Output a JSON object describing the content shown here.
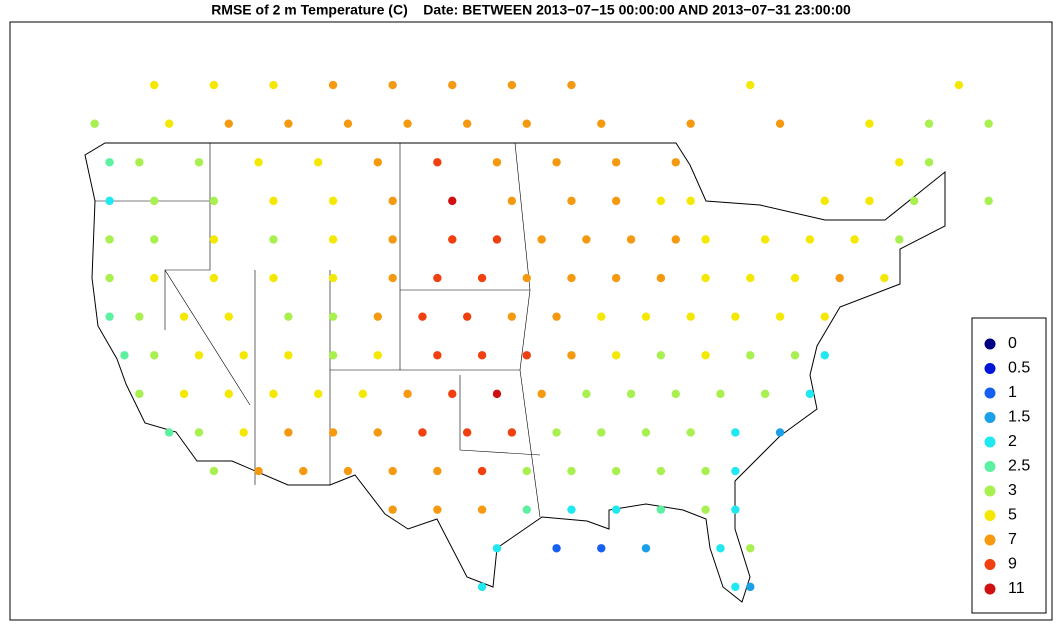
{
  "map": {
    "title": "RMSE of 2 m Temperature (C)    Date: BETWEEN 2013−07−15 00:00:00 AND 2013−07−31 23:00:00",
    "legend": {
      "levels": [
        0,
        0.5,
        1,
        1.5,
        2,
        2.5,
        3,
        5,
        7,
        9,
        11
      ],
      "colors": [
        "#000080",
        "#0015d6",
        "#1560f0",
        "#1ba0e8",
        "#20e8f0",
        "#5cf0a0",
        "#a8f050",
        "#f5e800",
        "#f59a10",
        "#f04010",
        "#d01010"
      ]
    },
    "stations": [
      [
        -120,
        52,
        5
      ],
      [
        -116,
        52,
        5
      ],
      [
        -112,
        52,
        5
      ],
      [
        -108,
        52,
        7
      ],
      [
        -104,
        52,
        7
      ],
      [
        -100,
        52,
        7
      ],
      [
        -96,
        52,
        7
      ],
      [
        -92,
        52,
        7
      ],
      [
        -80,
        52,
        5
      ],
      [
        -66,
        52,
        5
      ],
      [
        -124,
        50,
        3
      ],
      [
        -119,
        50,
        5
      ],
      [
        -115,
        50,
        7
      ],
      [
        -111,
        50,
        7
      ],
      [
        -107,
        50,
        7
      ],
      [
        -103,
        50,
        7
      ],
      [
        -99,
        50,
        7
      ],
      [
        -95,
        50,
        7
      ],
      [
        -90,
        50,
        7
      ],
      [
        -84,
        50,
        7
      ],
      [
        -78,
        50,
        7
      ],
      [
        -72,
        50,
        5
      ],
      [
        -68,
        50,
        3
      ],
      [
        -64,
        50,
        3
      ],
      [
        -123,
        48,
        2.5
      ],
      [
        -121,
        48,
        3
      ],
      [
        -117,
        48,
        3
      ],
      [
        -113,
        48,
        5
      ],
      [
        -109,
        48,
        5
      ],
      [
        -105,
        48,
        7
      ],
      [
        -101,
        48,
        9
      ],
      [
        -97,
        48,
        7
      ],
      [
        -93,
        48,
        7
      ],
      [
        -89,
        48,
        7
      ],
      [
        -85,
        48,
        7
      ],
      [
        -70,
        48,
        5
      ],
      [
        -68,
        48,
        3
      ],
      [
        -123,
        46,
        2
      ],
      [
        -120,
        46,
        3
      ],
      [
        -116,
        46,
        3
      ],
      [
        -112,
        46,
        5
      ],
      [
        -108,
        46,
        5
      ],
      [
        -104,
        46,
        7
      ],
      [
        -100,
        46,
        11
      ],
      [
        -96,
        46,
        7
      ],
      [
        -92,
        46,
        7
      ],
      [
        -89,
        46,
        7
      ],
      [
        -86,
        46,
        5
      ],
      [
        -84,
        46,
        5
      ],
      [
        -75,
        46,
        5
      ],
      [
        -72,
        46,
        5
      ],
      [
        -69,
        46,
        3
      ],
      [
        -64,
        46,
        3
      ],
      [
        -123,
        44,
        3
      ],
      [
        -120,
        44,
        3
      ],
      [
        -116,
        44,
        5
      ],
      [
        -112,
        44,
        3
      ],
      [
        -108,
        44,
        5
      ],
      [
        -104,
        44,
        7
      ],
      [
        -100,
        44,
        9
      ],
      [
        -97,
        44,
        9
      ],
      [
        -94,
        44,
        7
      ],
      [
        -91,
        44,
        7
      ],
      [
        -88,
        44,
        7
      ],
      [
        -85,
        44,
        7
      ],
      [
        -83,
        44,
        5
      ],
      [
        -79,
        44,
        5
      ],
      [
        -76,
        44,
        5
      ],
      [
        -73,
        44,
        5
      ],
      [
        -70,
        44,
        3
      ],
      [
        -123,
        42,
        3
      ],
      [
        -120,
        42,
        5
      ],
      [
        -116,
        42,
        5
      ],
      [
        -112,
        42,
        5
      ],
      [
        -108,
        42,
        5
      ],
      [
        -104,
        42,
        7
      ],
      [
        -101,
        42,
        9
      ],
      [
        -98,
        42,
        9
      ],
      [
        -95,
        42,
        7
      ],
      [
        -92,
        42,
        7
      ],
      [
        -89,
        42,
        7
      ],
      [
        -86,
        42,
        7
      ],
      [
        -83,
        42,
        5
      ],
      [
        -80,
        42,
        5
      ],
      [
        -77,
        42,
        5
      ],
      [
        -74,
        42,
        7
      ],
      [
        -71,
        42,
        5
      ],
      [
        -123,
        40,
        2.5
      ],
      [
        -121,
        40,
        3
      ],
      [
        -118,
        40,
        5
      ],
      [
        -115,
        40,
        5
      ],
      [
        -111,
        40,
        3
      ],
      [
        -108,
        40,
        3
      ],
      [
        -105,
        40,
        7
      ],
      [
        -102,
        40,
        9
      ],
      [
        -99,
        40,
        9
      ],
      [
        -96,
        40,
        7
      ],
      [
        -93,
        40,
        7
      ],
      [
        -90,
        40,
        5
      ],
      [
        -87,
        40,
        5
      ],
      [
        -84,
        40,
        5
      ],
      [
        -81,
        40,
        5
      ],
      [
        -78,
        40,
        5
      ],
      [
        -75,
        40,
        5
      ],
      [
        -122,
        38,
        2.5
      ],
      [
        -120,
        38,
        3
      ],
      [
        -117,
        38,
        5
      ],
      [
        -114,
        38,
        5
      ],
      [
        -111,
        38,
        5
      ],
      [
        -108,
        38,
        3
      ],
      [
        -105,
        38,
        5
      ],
      [
        -101,
        38,
        9
      ],
      [
        -98,
        38,
        9
      ],
      [
        -95,
        38,
        9
      ],
      [
        -92,
        38,
        7
      ],
      [
        -89,
        38,
        5
      ],
      [
        -86,
        38,
        3
      ],
      [
        -83,
        38,
        5
      ],
      [
        -80,
        38,
        3
      ],
      [
        -77,
        38,
        3
      ],
      [
        -75,
        38,
        2
      ],
      [
        -121,
        36,
        3
      ],
      [
        -118,
        36,
        5
      ],
      [
        -115,
        36,
        5
      ],
      [
        -112,
        36,
        5
      ],
      [
        -109,
        36,
        5
      ],
      [
        -106,
        36,
        5
      ],
      [
        -103,
        36,
        7
      ],
      [
        -100,
        36,
        9
      ],
      [
        -97,
        36,
        11
      ],
      [
        -94,
        36,
        7
      ],
      [
        -91,
        36,
        3
      ],
      [
        -88,
        36,
        3
      ],
      [
        -85,
        36,
        3
      ],
      [
        -82,
        36,
        3
      ],
      [
        -79,
        36,
        3
      ],
      [
        -76,
        36,
        2
      ],
      [
        -119,
        34,
        2.5
      ],
      [
        -117,
        34,
        3
      ],
      [
        -114,
        34,
        5
      ],
      [
        -111,
        34,
        7
      ],
      [
        -108,
        34,
        7
      ],
      [
        -105,
        34,
        7
      ],
      [
        -102,
        34,
        9
      ],
      [
        -99,
        34,
        9
      ],
      [
        -96,
        34,
        9
      ],
      [
        -93,
        34,
        3
      ],
      [
        -90,
        34,
        3
      ],
      [
        -87,
        34,
        3
      ],
      [
        -84,
        34,
        3
      ],
      [
        -81,
        34,
        2
      ],
      [
        -78,
        34,
        1.5
      ],
      [
        -116,
        32,
        3
      ],
      [
        -113,
        32,
        7
      ],
      [
        -110,
        32,
        7
      ],
      [
        -107,
        32,
        7
      ],
      [
        -104,
        32,
        7
      ],
      [
        -101,
        32,
        7
      ],
      [
        -98,
        32,
        9
      ],
      [
        -95,
        32,
        3
      ],
      [
        -92,
        32,
        3
      ],
      [
        -89,
        32,
        3
      ],
      [
        -86,
        32,
        3
      ],
      [
        -83,
        32,
        3
      ],
      [
        -81,
        32,
        2
      ],
      [
        -104,
        30,
        7
      ],
      [
        -101,
        30,
        7
      ],
      [
        -98,
        30,
        7
      ],
      [
        -95,
        30,
        2.5
      ],
      [
        -92,
        30,
        2
      ],
      [
        -89,
        30,
        2
      ],
      [
        -86,
        30,
        2.5
      ],
      [
        -83,
        30,
        3
      ],
      [
        -81,
        30,
        2
      ],
      [
        -97,
        28,
        2
      ],
      [
        -93,
        28,
        1
      ],
      [
        -90,
        28,
        1
      ],
      [
        -87,
        28,
        1.5
      ],
      [
        -82,
        28,
        2
      ],
      [
        -80,
        28,
        3
      ],
      [
        -98,
        26,
        2
      ],
      [
        -81,
        26,
        2
      ],
      [
        -80,
        26,
        1.5
      ]
    ]
  }
}
